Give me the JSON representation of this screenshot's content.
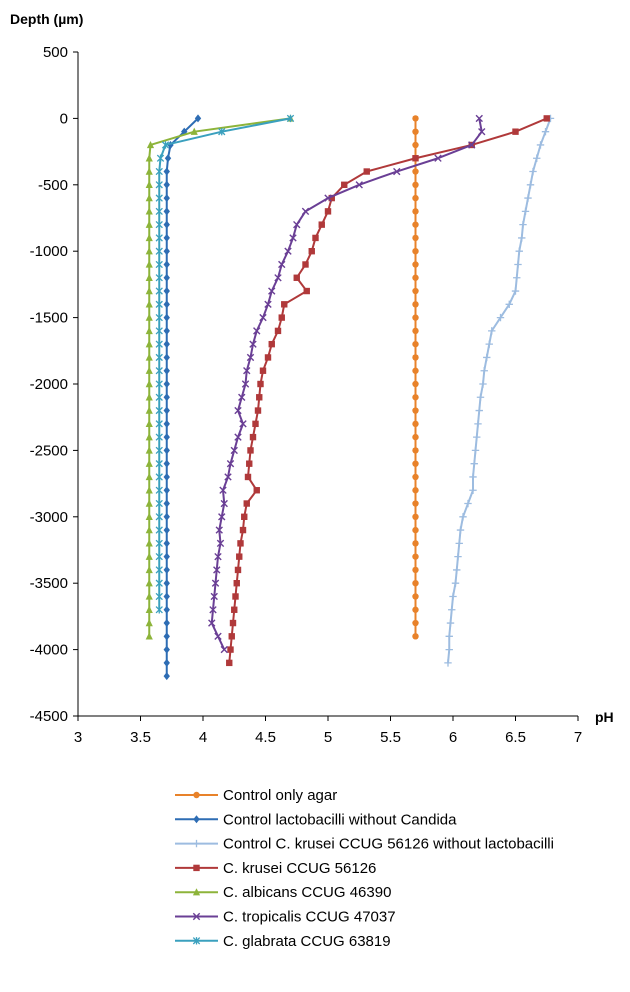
{
  "chart_data": {
    "type": "line",
    "title": "",
    "xlabel": "pH",
    "ylabel": "Depth (µm)",
    "xlim": [
      3,
      7
    ],
    "ylim": [
      -4500,
      500
    ],
    "xticks": [
      3,
      3.5,
      4,
      4.5,
      5,
      5.5,
      6,
      6.5,
      7
    ],
    "xtick_labels": [
      "3",
      "3.5",
      "4",
      "4.5",
      "5",
      "5.5",
      "6",
      "6.5",
      "7"
    ],
    "yticks": [
      500,
      0,
      -500,
      -1000,
      -1500,
      -2000,
      -2500,
      -3000,
      -3500,
      -4000,
      -4500
    ],
    "ytick_labels": [
      "500",
      "0",
      "-500",
      "-1000",
      "-1500",
      "-2000",
      "-2500",
      "-3000",
      "-3500",
      "-4000",
      "-4500"
    ],
    "grid": false,
    "legend_position": "bottom",
    "series": [
      {
        "name": "Control only agar",
        "color": "#E8822A",
        "marker": "circle",
        "x": [
          5.7,
          5.7,
          5.7,
          5.7,
          5.7,
          5.7,
          5.7,
          5.7,
          5.7,
          5.7,
          5.7,
          5.7,
          5.7,
          5.7,
          5.7,
          5.7,
          5.7,
          5.7,
          5.7,
          5.7,
          5.7,
          5.7,
          5.7,
          5.7,
          5.7,
          5.7,
          5.7,
          5.7,
          5.7,
          5.7,
          5.7,
          5.7,
          5.7,
          5.7,
          5.7,
          5.7,
          5.7,
          5.7,
          5.7,
          5.7
        ],
        "y": [
          0,
          -100,
          -200,
          -300,
          -400,
          -500,
          -600,
          -700,
          -800,
          -900,
          -1000,
          -1100,
          -1200,
          -1300,
          -1400,
          -1500,
          -1600,
          -1700,
          -1800,
          -1900,
          -2000,
          -2100,
          -2200,
          -2300,
          -2400,
          -2500,
          -2600,
          -2700,
          -2800,
          -2900,
          -3000,
          -3100,
          -3200,
          -3300,
          -3400,
          -3500,
          -3600,
          -3700,
          -3800,
          -3900
        ]
      },
      {
        "name": "Control lactobacilli without Candida",
        "color": "#2E6DB4",
        "marker": "diamond",
        "x": [
          3.96,
          3.85,
          3.74,
          3.72,
          3.71,
          3.71,
          3.71,
          3.71,
          3.71,
          3.71,
          3.71,
          3.71,
          3.71,
          3.71,
          3.71,
          3.71,
          3.71,
          3.71,
          3.71,
          3.71,
          3.71,
          3.71,
          3.71,
          3.71,
          3.71,
          3.71,
          3.71,
          3.71,
          3.71,
          3.71,
          3.71,
          3.71,
          3.71,
          3.71,
          3.71,
          3.71,
          3.71,
          3.71,
          3.71,
          3.71,
          3.71,
          3.71,
          3.71
        ],
        "y": [
          0,
          -100,
          -200,
          -300,
          -400,
          -500,
          -600,
          -700,
          -800,
          -900,
          -1000,
          -1100,
          -1200,
          -1300,
          -1400,
          -1500,
          -1600,
          -1700,
          -1800,
          -1900,
          -2000,
          -2100,
          -2200,
          -2300,
          -2400,
          -2500,
          -2600,
          -2700,
          -2800,
          -2900,
          -3000,
          -3100,
          -3200,
          -3300,
          -3400,
          -3500,
          -3600,
          -3700,
          -3800,
          -3900,
          -4000,
          -4100,
          -4200
        ]
      },
      {
        "name": "Control C. krusei CCUG 56126 without lactobacilli",
        "color": "#9DBCE0",
        "marker": "plus",
        "x": [
          6.78,
          6.74,
          6.7,
          6.67,
          6.64,
          6.62,
          6.6,
          6.58,
          6.56,
          6.55,
          6.53,
          6.52,
          6.51,
          6.5,
          6.45,
          6.38,
          6.31,
          6.29,
          6.27,
          6.25,
          6.24,
          6.22,
          6.21,
          6.2,
          6.19,
          6.18,
          6.17,
          6.16,
          6.16,
          6.12,
          6.08,
          6.06,
          6.05,
          6.04,
          6.03,
          6.02,
          6.0,
          5.99,
          5.98,
          5.97,
          5.97,
          5.96
        ],
        "y": [
          0,
          -100,
          -200,
          -300,
          -400,
          -500,
          -600,
          -700,
          -800,
          -900,
          -1000,
          -1100,
          -1200,
          -1300,
          -1400,
          -1500,
          -1600,
          -1700,
          -1800,
          -1900,
          -2000,
          -2100,
          -2200,
          -2300,
          -2400,
          -2500,
          -2600,
          -2700,
          -2800,
          -2900,
          -3000,
          -3100,
          -3200,
          -3300,
          -3400,
          -3500,
          -3600,
          -3700,
          -3800,
          -3900,
          -4000,
          -4100
        ]
      },
      {
        "name": "C. krusei CCUG 56126",
        "color": "#B0393A",
        "marker": "square",
        "x": [
          6.75,
          6.5,
          6.15,
          5.7,
          5.31,
          5.13,
          5.03,
          5.0,
          4.95,
          4.9,
          4.87,
          4.82,
          4.75,
          4.83,
          4.65,
          4.63,
          4.6,
          4.55,
          4.52,
          4.48,
          4.46,
          4.45,
          4.44,
          4.42,
          4.4,
          4.38,
          4.37,
          4.36,
          4.43,
          4.35,
          4.33,
          4.32,
          4.3,
          4.29,
          4.28,
          4.27,
          4.26,
          4.25,
          4.24,
          4.23,
          4.22,
          4.21
        ],
        "y": [
          0,
          -100,
          -200,
          -300,
          -400,
          -500,
          -600,
          -700,
          -800,
          -900,
          -1000,
          -1100,
          -1200,
          -1300,
          -1400,
          -1500,
          -1600,
          -1700,
          -1800,
          -1900,
          -2000,
          -2100,
          -2200,
          -2300,
          -2400,
          -2500,
          -2600,
          -2700,
          -2800,
          -2900,
          -3000,
          -3100,
          -3200,
          -3300,
          -3400,
          -3500,
          -3600,
          -3700,
          -3800,
          -3900,
          -4000,
          -4100
        ]
      },
      {
        "name": "C. albicans CCUG 46390",
        "color": "#8DB43A",
        "marker": "triangle",
        "x": [
          4.7,
          3.93,
          3.58,
          3.57,
          3.57,
          3.57,
          3.57,
          3.57,
          3.57,
          3.57,
          3.57,
          3.57,
          3.57,
          3.57,
          3.57,
          3.57,
          3.57,
          3.57,
          3.57,
          3.57,
          3.57,
          3.57,
          3.57,
          3.57,
          3.57,
          3.57,
          3.57,
          3.57,
          3.57,
          3.57,
          3.57,
          3.57,
          3.57,
          3.57,
          3.57,
          3.57,
          3.57,
          3.57,
          3.57,
          3.57
        ],
        "y": [
          0,
          -100,
          -200,
          -300,
          -400,
          -500,
          -600,
          -700,
          -800,
          -900,
          -1000,
          -1100,
          -1200,
          -1300,
          -1400,
          -1500,
          -1600,
          -1700,
          -1800,
          -1900,
          -2000,
          -2100,
          -2200,
          -2300,
          -2400,
          -2500,
          -2600,
          -2700,
          -2800,
          -2900,
          -3000,
          -3100,
          -3200,
          -3300,
          -3400,
          -3500,
          -3600,
          -3700,
          -3800,
          -3900
        ]
      },
      {
        "name": "C. tropicalis CCUG 47037",
        "color": "#6A3F95",
        "marker": "x",
        "x": [
          6.21,
          6.23,
          6.15,
          5.88,
          5.55,
          5.25,
          5.0,
          4.82,
          4.75,
          4.72,
          4.68,
          4.63,
          4.6,
          4.55,
          4.52,
          4.48,
          4.43,
          4.4,
          4.38,
          4.35,
          4.34,
          4.31,
          4.28,
          4.32,
          4.28,
          4.25,
          4.22,
          4.2,
          4.16,
          4.17,
          4.15,
          4.13,
          4.14,
          4.12,
          4.11,
          4.1,
          4.09,
          4.08,
          4.07,
          4.12,
          4.17
        ],
        "y": [
          0,
          -100,
          -200,
          -300,
          -400,
          -500,
          -600,
          -700,
          -800,
          -900,
          -1000,
          -1100,
          -1200,
          -1300,
          -1400,
          -1500,
          -1600,
          -1700,
          -1800,
          -1900,
          -2000,
          -2100,
          -2200,
          -2300,
          -2400,
          -2500,
          -2600,
          -2700,
          -2800,
          -2900,
          -3000,
          -3100,
          -3200,
          -3300,
          -3400,
          -3500,
          -3600,
          -3700,
          -3800,
          -3900,
          -4000
        ]
      },
      {
        "name": "C. glabrata CCUG 63819",
        "color": "#3AA0BE",
        "marker": "star",
        "x": [
          4.7,
          4.15,
          3.7,
          3.66,
          3.65,
          3.65,
          3.65,
          3.65,
          3.65,
          3.65,
          3.65,
          3.65,
          3.65,
          3.65,
          3.65,
          3.65,
          3.65,
          3.65,
          3.65,
          3.65,
          3.65,
          3.65,
          3.65,
          3.65,
          3.65,
          3.65,
          3.65,
          3.65,
          3.65,
          3.65,
          3.65,
          3.65,
          3.65,
          3.65,
          3.65,
          3.65,
          3.65,
          3.65
        ],
        "y": [
          0,
          -100,
          -200,
          -300,
          -400,
          -500,
          -600,
          -700,
          -800,
          -900,
          -1000,
          -1100,
          -1200,
          -1300,
          -1400,
          -1500,
          -1600,
          -1700,
          -1800,
          -1900,
          -2000,
          -2100,
          -2200,
          -2300,
          -2400,
          -2500,
          -2600,
          -2700,
          -2800,
          -2900,
          -3000,
          -3100,
          -3200,
          -3300,
          -3400,
          -3500,
          -3600,
          -3700
        ]
      }
    ]
  }
}
